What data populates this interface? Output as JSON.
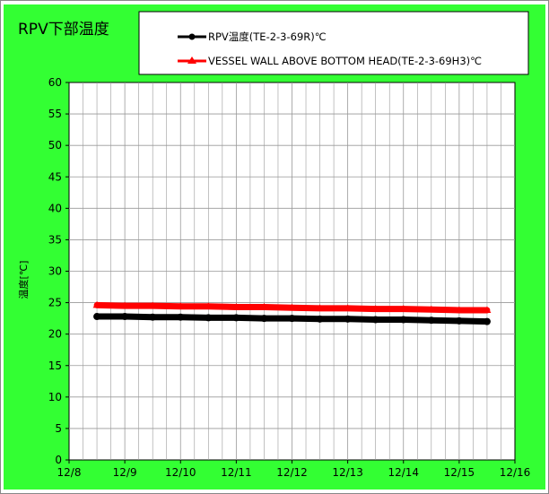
{
  "chart_data": {
    "type": "line",
    "title": "RPV下部温度",
    "xlabel": "",
    "ylabel": "温度[℃]",
    "xlim": [
      "12/8",
      "12/16"
    ],
    "x_ticks": [
      "12/8",
      "12/9",
      "12/10",
      "12/11",
      "12/12",
      "12/13",
      "12/14",
      "12/15",
      "12/16"
    ],
    "ylim": [
      0,
      60
    ],
    "y_ticks": [
      0,
      5,
      10,
      15,
      20,
      25,
      30,
      35,
      40,
      45,
      50,
      55,
      60
    ],
    "grid": true,
    "legend_position": "top-right",
    "series": [
      {
        "name": "RPV温度(TE-2-3-69R)℃",
        "color": "#000000",
        "marker": "circle",
        "x": [
          "12/8 12:00",
          "12/9 0:00",
          "12/9 12:00",
          "12/10 0:00",
          "12/10 12:00",
          "12/11 0:00",
          "12/11 12:00",
          "12/12 0:00",
          "12/12 12:00",
          "12/13 0:00",
          "12/13 12:00",
          "12/14 0:00",
          "12/14 12:00",
          "12/15 0:00",
          "12/15 12:00"
        ],
        "values": [
          22.8,
          22.8,
          22.7,
          22.7,
          22.6,
          22.6,
          22.5,
          22.5,
          22.4,
          22.4,
          22.3,
          22.3,
          22.2,
          22.1,
          22.0
        ]
      },
      {
        "name": "VESSEL WALL ABOVE BOTTOM HEAD(TE-2-3-69H3)℃",
        "color": "#ff0000",
        "marker": "triangle",
        "x": [
          "12/8 12:00",
          "12/9 0:00",
          "12/9 12:00",
          "12/10 0:00",
          "12/10 12:00",
          "12/11 0:00",
          "12/11 12:00",
          "12/12 0:00",
          "12/12 12:00",
          "12/13 0:00",
          "12/13 12:00",
          "12/14 0:00",
          "12/14 12:00",
          "12/15 0:00",
          "12/15 12:00"
        ],
        "values": [
          24.6,
          24.5,
          24.5,
          24.4,
          24.4,
          24.3,
          24.3,
          24.2,
          24.1,
          24.1,
          24.0,
          24.0,
          23.9,
          23.8,
          23.8
        ]
      }
    ]
  },
  "colors": {
    "background": "#33ff33",
    "plot_area": "#ffffff",
    "gridline": "#999999"
  }
}
